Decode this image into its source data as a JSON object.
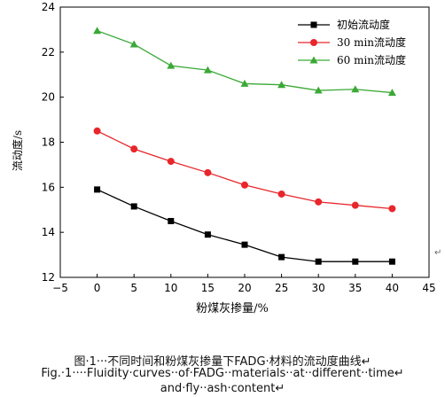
{
  "chart_data": {
    "type": "line",
    "xlabel": "粉煤灰掺量/%",
    "ylabel": "流动度/s",
    "xlim": [
      -5,
      45
    ],
    "ylim": [
      12,
      24
    ],
    "xticks": [
      -5,
      0,
      5,
      10,
      15,
      20,
      25,
      30,
      35,
      40,
      45
    ],
    "yticks": [
      12,
      14,
      16,
      18,
      20,
      22,
      24
    ],
    "x": [
      0,
      5,
      10,
      15,
      20,
      25,
      30,
      35,
      40
    ],
    "legend_position": "top-right",
    "series": [
      {
        "name": "初始流动度",
        "marker": "square",
        "color": "#000000",
        "values": [
          15.9,
          15.15,
          14.5,
          13.9,
          13.45,
          12.9,
          12.7,
          12.7,
          12.7
        ]
      },
      {
        "name": "30 min流动度",
        "marker": "circle",
        "color": "#e8262b",
        "values": [
          18.5,
          17.7,
          17.15,
          16.65,
          16.1,
          15.7,
          15.35,
          15.2,
          15.05
        ]
      },
      {
        "name": "60 min流动度",
        "marker": "triangle",
        "color": "#3aa935",
        "values": [
          22.95,
          22.35,
          21.4,
          21.2,
          20.6,
          20.55,
          20.3,
          20.35,
          20.2
        ]
      }
    ]
  },
  "caption": {
    "line1": "图·1···不同时间和粉煤灰掺量下FADG·材料的流动度曲线↵",
    "line2": "Fig.·1····Fluidity·curves··of·FADG··materials··at··different··time↵",
    "line3": "and·fly··ash·content↵"
  },
  "stray_mark": "↵"
}
